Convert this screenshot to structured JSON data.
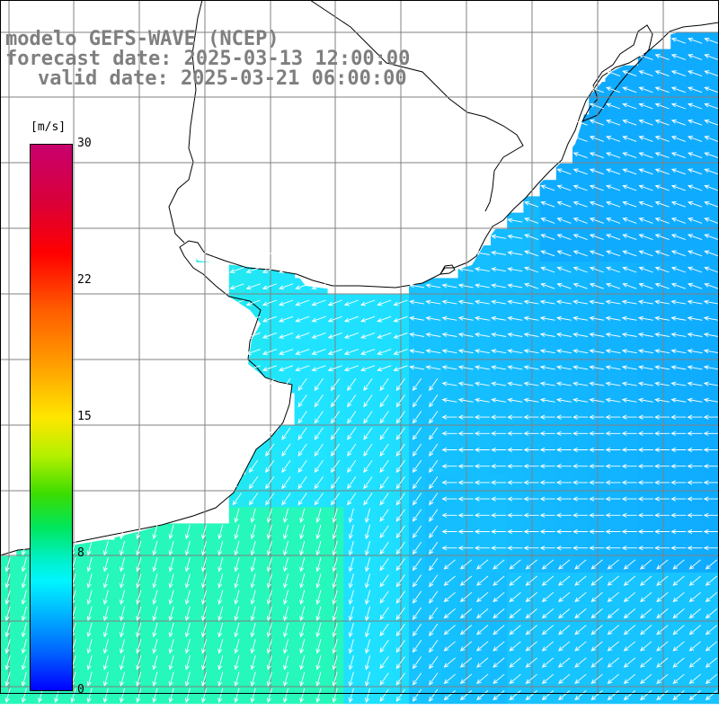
{
  "titles": {
    "model": "modelo GEFS-WAVE (NCEP)",
    "forecast": "forecast date: 2025-03-13 12:00:00",
    "valid": "valid date: 2025-03-21 06:00:00"
  },
  "colorbar": {
    "unit": "[m/s]",
    "ticks": [
      "30",
      "22",
      "15",
      "8",
      "0"
    ]
  },
  "colors": {
    "title": "#7f7f7f",
    "land": "#ffffff",
    "coast": "#000000",
    "grid": "#808080",
    "arrow": "#ffffff"
  },
  "wind_field": {
    "description_units": "m/s",
    "regions": [
      {
        "area": "southwest shelf",
        "speed_ms": 7.5,
        "direction": "toward south-southwest"
      },
      {
        "area": "central shelf",
        "speed_ms": 5.5,
        "direction": "toward southwest"
      },
      {
        "area": "offshore east",
        "speed_ms": 4.0,
        "direction": "toward west"
      },
      {
        "area": "northeast coast",
        "speed_ms": 3.0,
        "direction": "toward northwest"
      }
    ]
  }
}
